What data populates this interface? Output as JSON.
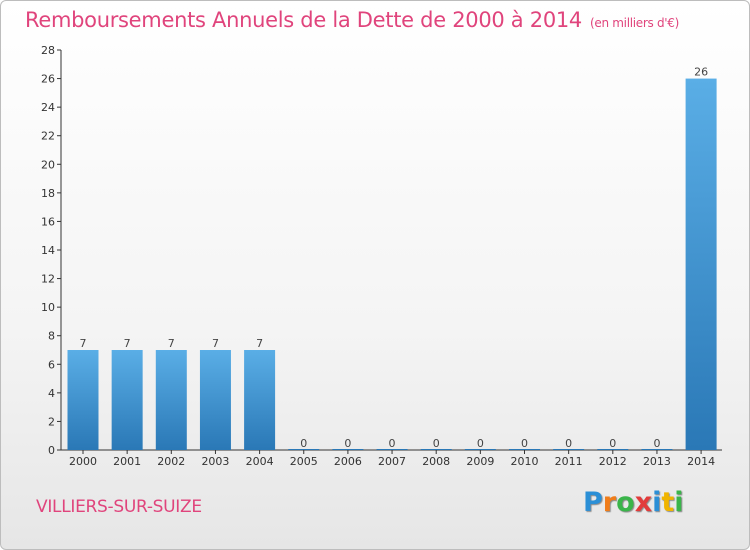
{
  "title": "Remboursements Annuels de la Dette de 2000 à 2014",
  "subtitle": "(en milliers d'€)",
  "commune": "VILLIERS-SUR-SUIZE",
  "brand": {
    "letters": [
      "P",
      "r",
      "o",
      "x",
      "i",
      "t",
      "i"
    ],
    "colors": [
      "#2b8fd6",
      "#f07d1a",
      "#3ab54a",
      "#e23b3b",
      "#2b8fd6",
      "#f0b400",
      "#3ab54a"
    ]
  },
  "colors": {
    "title": "#e0447c",
    "bar_top": "#5aaee6",
    "bar_bottom": "#2a78b6",
    "axis": "#333333"
  },
  "chart_data": {
    "type": "bar",
    "categories": [
      "2000",
      "2001",
      "2002",
      "2003",
      "2004",
      "2005",
      "2006",
      "2007",
      "2008",
      "2009",
      "2010",
      "2011",
      "2012",
      "2013",
      "2014"
    ],
    "values": [
      7,
      7,
      7,
      7,
      7,
      0,
      0,
      0,
      0,
      0,
      0,
      0,
      0,
      0,
      26
    ],
    "data_labels": [
      "7",
      "7",
      "7",
      "7",
      "7",
      "0",
      "0",
      "0",
      "0",
      "0",
      "0",
      "0",
      "0",
      "0",
      "26"
    ],
    "ylim": [
      0,
      28
    ],
    "yticks": [
      0,
      2,
      4,
      6,
      8,
      10,
      12,
      14,
      16,
      18,
      20,
      22,
      24,
      26,
      28
    ],
    "title": "Remboursements Annuels de la Dette de 2000 à 2014",
    "xlabel": "",
    "ylabel": "",
    "grid": false
  }
}
